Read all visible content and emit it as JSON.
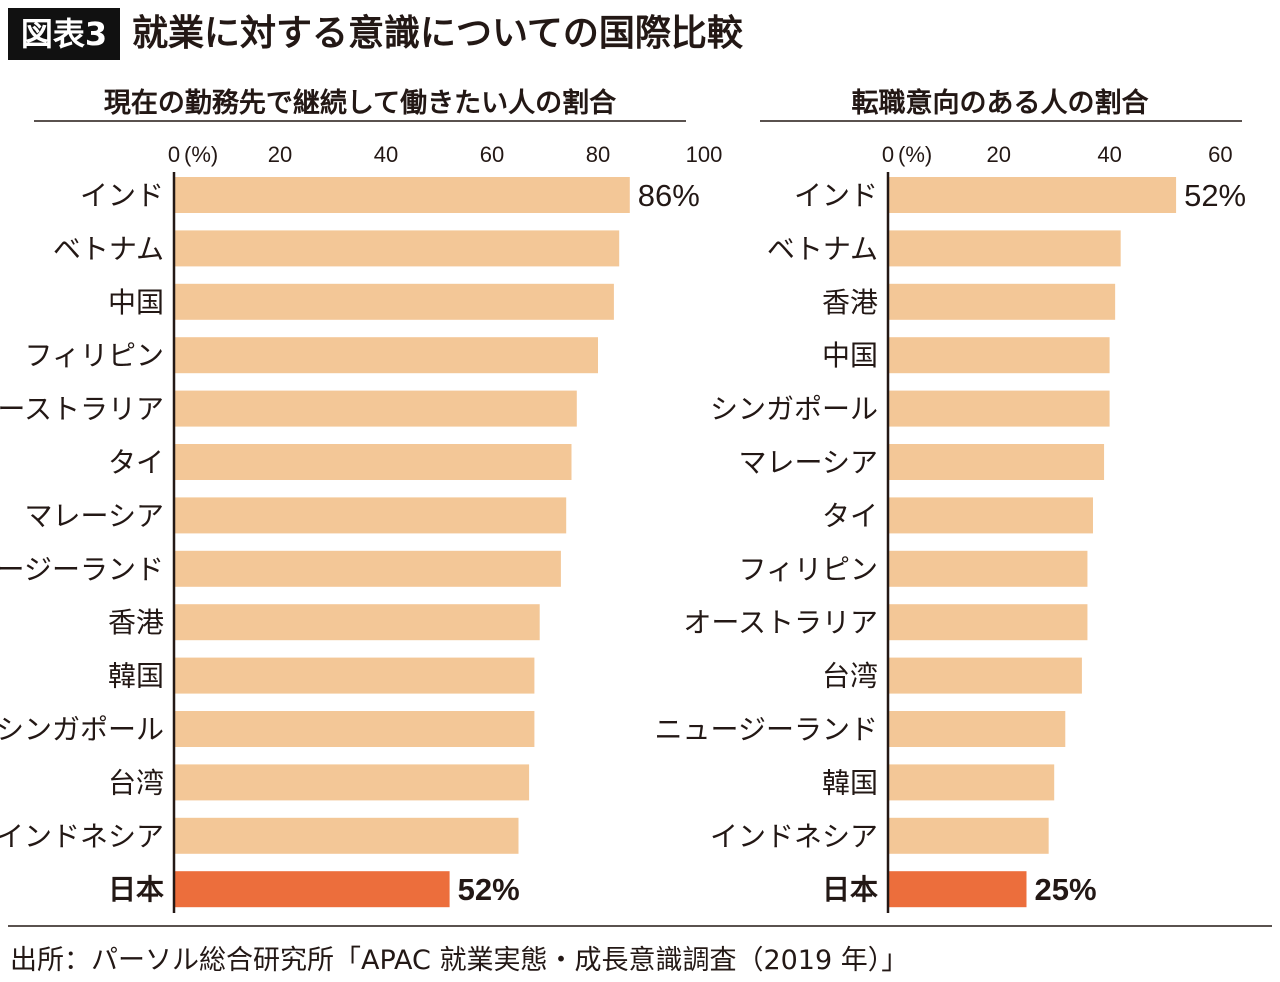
{
  "figure_label": "図表3",
  "title": "就業に対する意識についての国際比較",
  "source": "出所：パーソル総合研究所「APAC 就業実態・成長意識調査（2019 年）」",
  "colors": {
    "bar": "#f3c797",
    "highlight": "#ec6e3c",
    "axis": "#231815"
  },
  "chart_data": [
    {
      "type": "bar",
      "orientation": "horizontal",
      "title": "現在の勤務先で継続して働きたい人の割合",
      "unit_label": "(%)",
      "xlim": [
        0,
        100
      ],
      "ticks": [
        0,
        20,
        40,
        60,
        80,
        100
      ],
      "categories": [
        "インド",
        "ベトナム",
        "中国",
        "フィリピン",
        "オーストラリア",
        "タイ",
        "マレーシア",
        "ニュージーランド",
        "香港",
        "韓国",
        "シンガポール",
        "台湾",
        "インドネシア",
        "日本"
      ],
      "values": [
        86,
        84,
        83,
        80,
        76,
        75,
        74,
        73,
        69,
        68,
        68,
        67,
        65,
        52
      ],
      "data_labels": {
        "0": "86%",
        "13": "52%"
      },
      "highlight": "日本"
    },
    {
      "type": "bar",
      "orientation": "horizontal",
      "title": "転職意向のある人の割合",
      "unit_label": "(%)",
      "xlim": [
        0,
        60
      ],
      "ticks": [
        0,
        20,
        40,
        60
      ],
      "categories": [
        "インド",
        "ベトナム",
        "香港",
        "中国",
        "シンガポール",
        "マレーシア",
        "タイ",
        "フィリピン",
        "オーストラリア",
        "台湾",
        "ニュージーランド",
        "韓国",
        "インドネシア",
        "日本"
      ],
      "values": [
        52,
        42,
        41,
        40,
        40,
        39,
        37,
        36,
        36,
        35,
        32,
        30,
        29,
        25
      ],
      "data_labels": {
        "0": "52%",
        "13": "25%"
      },
      "highlight": "日本"
    }
  ]
}
